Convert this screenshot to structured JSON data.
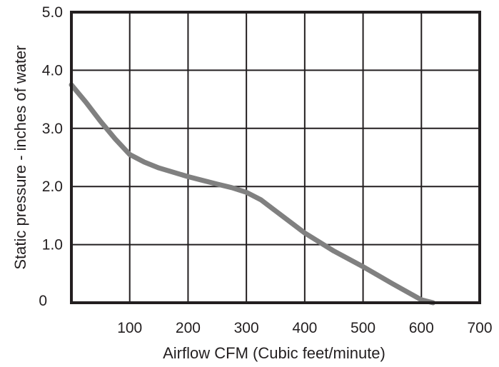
{
  "chart_data": {
    "type": "line",
    "title": "",
    "xlabel": "Airflow CFM (Cubic feet/minute)",
    "ylabel": "Static pressure - inches of water",
    "xlim": [
      0,
      700
    ],
    "ylim": [
      0,
      5
    ],
    "grid": true,
    "x_ticks": [
      {
        "value": 100,
        "label": "100"
      },
      {
        "value": 200,
        "label": "200"
      },
      {
        "value": 300,
        "label": "300"
      },
      {
        "value": 400,
        "label": "400"
      },
      {
        "value": 500,
        "label": "500"
      },
      {
        "value": 600,
        "label": "600"
      },
      {
        "value": 700,
        "label": "700"
      }
    ],
    "y_ticks": [
      {
        "value": 0,
        "label": "0"
      },
      {
        "value": 1,
        "label": "1.0"
      },
      {
        "value": 2,
        "label": "2.0"
      },
      {
        "value": 3,
        "label": "3.0"
      },
      {
        "value": 4,
        "label": "4.0"
      },
      {
        "value": 5,
        "label": "5.0"
      }
    ],
    "series": [
      {
        "color": "#808080",
        "points": [
          [
            0,
            3.75
          ],
          [
            25,
            3.45
          ],
          [
            50,
            3.12
          ],
          [
            75,
            2.82
          ],
          [
            100,
            2.55
          ],
          [
            125,
            2.42
          ],
          [
            150,
            2.32
          ],
          [
            200,
            2.17
          ],
          [
            250,
            2.04
          ],
          [
            275,
            1.98
          ],
          [
            300,
            1.9
          ],
          [
            325,
            1.77
          ],
          [
            350,
            1.58
          ],
          [
            400,
            1.2
          ],
          [
            450,
            0.89
          ],
          [
            500,
            0.62
          ],
          [
            550,
            0.33
          ],
          [
            600,
            0.05
          ],
          [
            620,
            -0.04
          ]
        ]
      }
    ]
  }
}
